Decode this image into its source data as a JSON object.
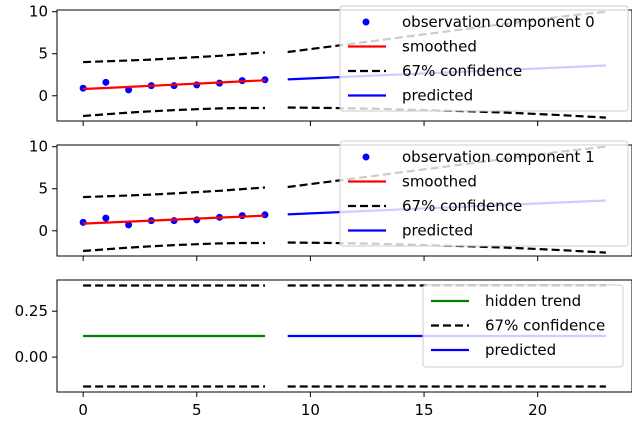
{
  "chart_data": [
    {
      "type": "line",
      "title": "",
      "xlabel": "",
      "ylabel": "",
      "xlim": [
        -1.15,
        24.15
      ],
      "ylim": [
        -3,
        10.2
      ],
      "xticks": [
        0,
        5,
        10,
        15,
        20
      ],
      "yticks": [
        0,
        5,
        10
      ],
      "ytick_labels": [
        "0",
        "5",
        "10"
      ],
      "show_x_tick_labels": false,
      "grid": false,
      "legend_position": "top-right",
      "series": [
        {
          "name": "observation component 0",
          "kind": "scatter",
          "color": "#0000ff",
          "x": [
            0,
            1,
            2,
            3,
            4,
            5,
            6,
            7,
            8
          ],
          "y": [
            0.9,
            1.6,
            0.7,
            1.2,
            1.2,
            1.3,
            1.5,
            1.8,
            1.9
          ]
        },
        {
          "name": "smoothed",
          "kind": "line",
          "color": "#ff0000",
          "x": [
            0,
            1,
            2,
            3,
            4,
            5,
            6,
            7,
            8
          ],
          "y": [
            0.8,
            0.93,
            1.06,
            1.19,
            1.32,
            1.45,
            1.58,
            1.71,
            1.84
          ]
        },
        {
          "name": "67% confidence",
          "kind": "dashed",
          "color": "#000000",
          "segments": [
            {
              "x": [
                0,
                1,
                2,
                3,
                4,
                5,
                6,
                7,
                8
              ],
              "y": [
                4.0,
                4.1,
                4.2,
                4.3,
                4.45,
                4.6,
                4.75,
                4.95,
                5.15
              ]
            },
            {
              "x": [
                0,
                1,
                2,
                3,
                4,
                5,
                6,
                7,
                8
              ],
              "y": [
                -2.4,
                -2.2,
                -2.0,
                -1.85,
                -1.7,
                -1.6,
                -1.5,
                -1.45,
                -1.45
              ]
            },
            {
              "x": [
                9,
                11,
                13,
                15,
                17,
                19,
                21,
                23
              ],
              "y": [
                5.2,
                5.9,
                6.6,
                7.3,
                8.0,
                8.7,
                9.4,
                10.0
              ]
            },
            {
              "x": [
                9,
                11,
                13,
                15,
                17,
                19,
                21,
                23
              ],
              "y": [
                -1.4,
                -1.45,
                -1.55,
                -1.7,
                -1.85,
                -2.05,
                -2.3,
                -2.6
              ]
            }
          ]
        },
        {
          "name": "predicted",
          "kind": "line",
          "color": "#0000ff",
          "x": [
            9,
            23
          ],
          "y": [
            1.95,
            3.6
          ]
        }
      ]
    },
    {
      "type": "line",
      "title": "",
      "xlabel": "",
      "ylabel": "",
      "xlim": [
        -1.15,
        24.15
      ],
      "ylim": [
        -3,
        10.2
      ],
      "xticks": [
        0,
        5,
        10,
        15,
        20
      ],
      "yticks": [
        0,
        5,
        10
      ],
      "ytick_labels": [
        "0",
        "5",
        "10"
      ],
      "show_x_tick_labels": false,
      "grid": false,
      "legend_position": "top-right",
      "series": [
        {
          "name": "observation component 1",
          "kind": "scatter",
          "color": "#0000ff",
          "x": [
            0,
            1,
            2,
            3,
            4,
            5,
            6,
            7,
            8
          ],
          "y": [
            1.0,
            1.5,
            0.7,
            1.2,
            1.2,
            1.3,
            1.6,
            1.8,
            1.9
          ]
        },
        {
          "name": "smoothed",
          "kind": "line",
          "color": "#ff0000",
          "x": [
            0,
            1,
            2,
            3,
            4,
            5,
            6,
            7,
            8
          ],
          "y": [
            0.85,
            0.97,
            1.09,
            1.21,
            1.33,
            1.45,
            1.57,
            1.69,
            1.81
          ]
        },
        {
          "name": "67% confidence",
          "kind": "dashed",
          "color": "#000000",
          "segments": [
            {
              "x": [
                0,
                1,
                2,
                3,
                4,
                5,
                6,
                7,
                8
              ],
              "y": [
                4.0,
                4.1,
                4.2,
                4.3,
                4.45,
                4.6,
                4.75,
                4.95,
                5.15
              ]
            },
            {
              "x": [
                0,
                1,
                2,
                3,
                4,
                5,
                6,
                7,
                8
              ],
              "y": [
                -2.4,
                -2.2,
                -2.0,
                -1.85,
                -1.7,
                -1.6,
                -1.5,
                -1.45,
                -1.45
              ]
            },
            {
              "x": [
                9,
                11,
                13,
                15,
                17,
                19,
                21,
                23
              ],
              "y": [
                5.2,
                5.9,
                6.6,
                7.3,
                8.0,
                8.7,
                9.4,
                10.0
              ]
            },
            {
              "x": [
                9,
                11,
                13,
                15,
                17,
                19,
                21,
                23
              ],
              "y": [
                -1.4,
                -1.45,
                -1.55,
                -1.7,
                -1.85,
                -2.05,
                -2.3,
                -2.6
              ]
            }
          ]
        },
        {
          "name": "predicted",
          "kind": "line",
          "color": "#0000ff",
          "x": [
            9,
            23
          ],
          "y": [
            1.95,
            3.6
          ]
        }
      ]
    },
    {
      "type": "line",
      "title": "",
      "xlabel": "",
      "ylabel": "",
      "xlim": [
        -1.15,
        24.15
      ],
      "ylim": [
        -0.19,
        0.42
      ],
      "xticks": [
        0,
        5,
        10,
        15,
        20
      ],
      "xtick_labels": [
        "0",
        "5",
        "10",
        "15",
        "20"
      ],
      "yticks": [
        0.0,
        0.25
      ],
      "ytick_labels": [
        "0.00",
        "0.25"
      ],
      "show_x_tick_labels": true,
      "grid": false,
      "legend_position": "top-right",
      "series": [
        {
          "name": "hidden trend",
          "kind": "line",
          "color": "#008000",
          "x": [
            0,
            8
          ],
          "y": [
            0.115,
            0.115
          ]
        },
        {
          "name": "67% confidence",
          "kind": "dashed",
          "color": "#000000",
          "segments": [
            {
              "x": [
                0,
                8
              ],
              "y": [
                0.39,
                0.39
              ]
            },
            {
              "x": [
                0,
                8
              ],
              "y": [
                -0.16,
                -0.16
              ]
            },
            {
              "x": [
                9,
                23
              ],
              "y": [
                0.39,
                0.39
              ]
            },
            {
              "x": [
                9,
                23
              ],
              "y": [
                -0.16,
                -0.16
              ]
            }
          ]
        },
        {
          "name": "predicted",
          "kind": "line",
          "color": "#0000ff",
          "x": [
            9,
            23
          ],
          "y": [
            0.115,
            0.115
          ]
        }
      ]
    }
  ]
}
